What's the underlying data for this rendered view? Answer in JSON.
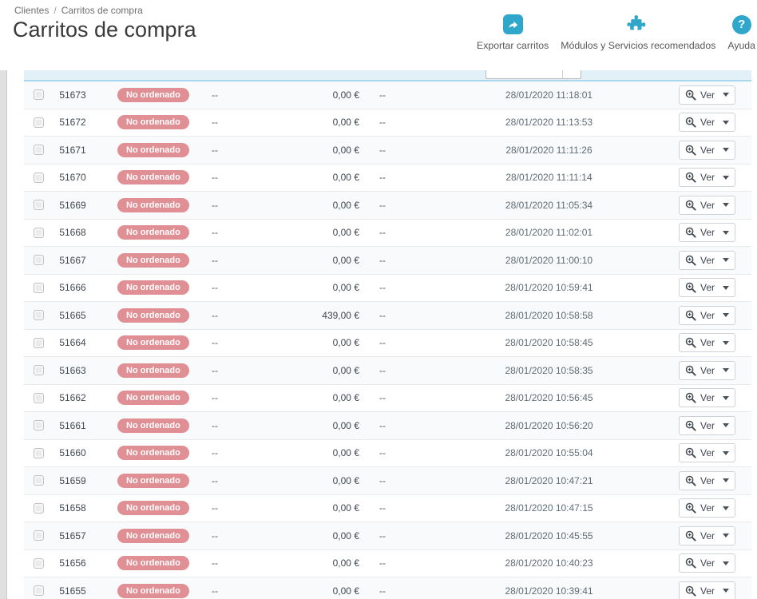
{
  "breadcrumb": {
    "parent": "Clientes",
    "separator": "/",
    "current": "Carritos de compra"
  },
  "page": {
    "title": "Carritos de compra"
  },
  "toolbar": {
    "export_label": "Exportar carritos",
    "modules_label": "Módulos y Servicios recomendados",
    "help_label": "Ayuda",
    "help_glyph": "?"
  },
  "colors": {
    "accent": "#2ea7cb",
    "badge_danger": "#e08f95",
    "filter_bg": "#e2f0f8",
    "filter_border": "#a9d6ec"
  },
  "table": {
    "view_label": "Ver",
    "rows": [
      {
        "id": "51673",
        "status": "No ordenado",
        "customer": "--",
        "total": "0,00 €",
        "carrier": "--",
        "date": "28/01/2020 11:18:01"
      },
      {
        "id": "51672",
        "status": "No ordenado",
        "customer": "--",
        "total": "0,00 €",
        "carrier": "--",
        "date": "28/01/2020 11:13:53"
      },
      {
        "id": "51671",
        "status": "No ordenado",
        "customer": "--",
        "total": "0,00 €",
        "carrier": "--",
        "date": "28/01/2020 11:11:26"
      },
      {
        "id": "51670",
        "status": "No ordenado",
        "customer": "--",
        "total": "0,00 €",
        "carrier": "--",
        "date": "28/01/2020 11:11:14"
      },
      {
        "id": "51669",
        "status": "No ordenado",
        "customer": "--",
        "total": "0,00 €",
        "carrier": "--",
        "date": "28/01/2020 11:05:34"
      },
      {
        "id": "51668",
        "status": "No ordenado",
        "customer": "--",
        "total": "0,00 €",
        "carrier": "--",
        "date": "28/01/2020 11:02:01"
      },
      {
        "id": "51667",
        "status": "No ordenado",
        "customer": "--",
        "total": "0,00 €",
        "carrier": "--",
        "date": "28/01/2020 11:00:10"
      },
      {
        "id": "51666",
        "status": "No ordenado",
        "customer": "--",
        "total": "0,00 €",
        "carrier": "--",
        "date": "28/01/2020 10:59:41"
      },
      {
        "id": "51665",
        "status": "No ordenado",
        "customer": "--",
        "total": "439,00 €",
        "carrier": "--",
        "date": "28/01/2020 10:58:58"
      },
      {
        "id": "51664",
        "status": "No ordenado",
        "customer": "--",
        "total": "0,00 €",
        "carrier": "--",
        "date": "28/01/2020 10:58:45"
      },
      {
        "id": "51663",
        "status": "No ordenado",
        "customer": "--",
        "total": "0,00 €",
        "carrier": "--",
        "date": "28/01/2020 10:58:35"
      },
      {
        "id": "51662",
        "status": "No ordenado",
        "customer": "--",
        "total": "0,00 €",
        "carrier": "--",
        "date": "28/01/2020 10:56:45"
      },
      {
        "id": "51661",
        "status": "No ordenado",
        "customer": "--",
        "total": "0,00 €",
        "carrier": "--",
        "date": "28/01/2020 10:56:20"
      },
      {
        "id": "51660",
        "status": "No ordenado",
        "customer": "--",
        "total": "0,00 €",
        "carrier": "--",
        "date": "28/01/2020 10:55:04"
      },
      {
        "id": "51659",
        "status": "No ordenado",
        "customer": "--",
        "total": "0,00 €",
        "carrier": "--",
        "date": "28/01/2020 10:47:21"
      },
      {
        "id": "51658",
        "status": "No ordenado",
        "customer": "--",
        "total": "0,00 €",
        "carrier": "--",
        "date": "28/01/2020 10:47:15"
      },
      {
        "id": "51657",
        "status": "No ordenado",
        "customer": "--",
        "total": "0,00 €",
        "carrier": "--",
        "date": "28/01/2020 10:45:55"
      },
      {
        "id": "51656",
        "status": "No ordenado",
        "customer": "--",
        "total": "0,00 €",
        "carrier": "--",
        "date": "28/01/2020 10:40:23"
      },
      {
        "id": "51655",
        "status": "No ordenado",
        "customer": "--",
        "total": "0,00 €",
        "carrier": "--",
        "date": "28/01/2020 10:39:41"
      }
    ]
  }
}
